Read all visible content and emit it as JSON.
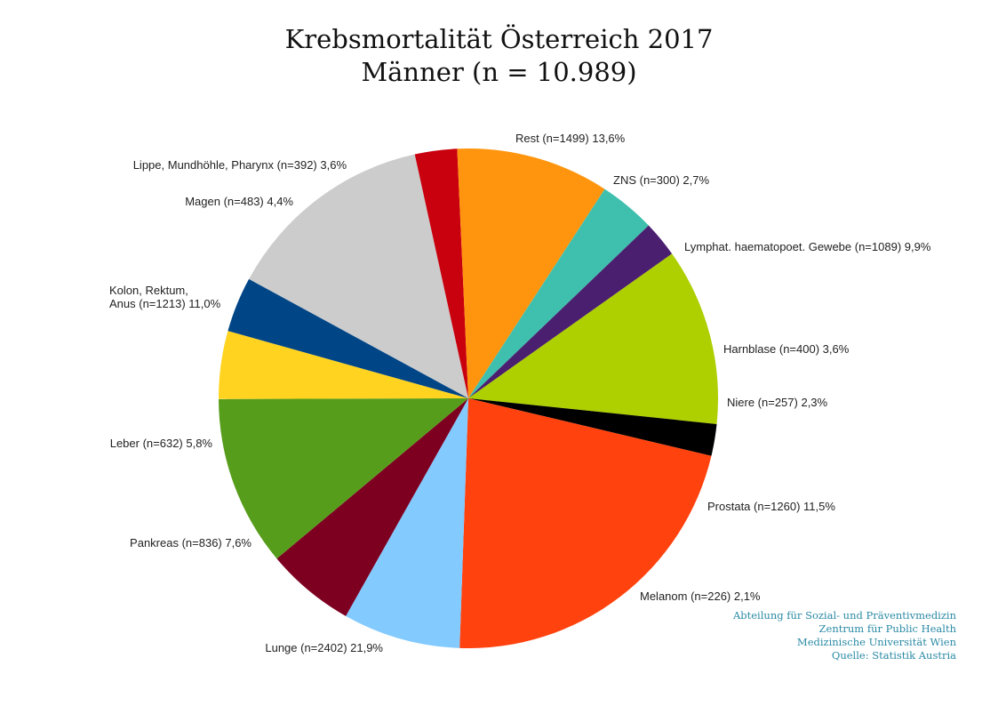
{
  "chart_data": {
    "type": "pie",
    "title": "Krebsmortalität Österreich 2017",
    "subtitle": "Männer (n = 10.989)",
    "slices": [
      {
        "label": [
          "Rest (n=1499) 13,6%"
        ],
        "value": 1499,
        "color": "#cccccc"
      },
      {
        "label": [
          "ZNS (n=300) 2,7%"
        ],
        "value": 300,
        "color": "#c9000e"
      },
      {
        "label": [
          "Lymphat. haematopoet. Gewebe (n=1089) 9,9%"
        ],
        "value": 1089,
        "color": "#ff950e"
      },
      {
        "label": [
          "Harnblase (n=400) 3,6%"
        ],
        "value": 400,
        "color": "#3fc0ae"
      },
      {
        "label": [
          "Niere (n=257) 2,3%"
        ],
        "value": 257,
        "color": "#4b1f6f"
      },
      {
        "label": [
          "Prostata (n=1260) 11,5%"
        ],
        "value": 1260,
        "color": "#aecf00"
      },
      {
        "label": [
          "Melanom (n=226) 2,1%"
        ],
        "value": 226,
        "color": "#000000"
      },
      {
        "label": [
          "Lunge (n=2402) 21,9%"
        ],
        "value": 2402,
        "color": "#ff420e"
      },
      {
        "label": [
          "Pankreas (n=836) 7,6%"
        ],
        "value": 836,
        "color": "#83caff"
      },
      {
        "label": [
          "Leber (n=632) 5,8%"
        ],
        "value": 632,
        "color": "#7e0021"
      },
      {
        "label": [
          "Kolon, Rektum,",
          "Anus (n=1213) 11,0%"
        ],
        "value": 1213,
        "color": "#579d1c"
      },
      {
        "label": [
          "Magen (n=483) 4,4%"
        ],
        "value": 483,
        "color": "#ffd320"
      },
      {
        "label": [
          "Lippe, Mundhöhle, Pharynx (n=392) 3,6%"
        ],
        "value": 392,
        "color": "#004586"
      }
    ]
  },
  "credits": [
    "Abteilung für Sozial- und Präventivmedizin",
    "Zentrum für Public Health",
    "Medizinische Universität Wien",
    "Quelle: Statistik Austria"
  ]
}
